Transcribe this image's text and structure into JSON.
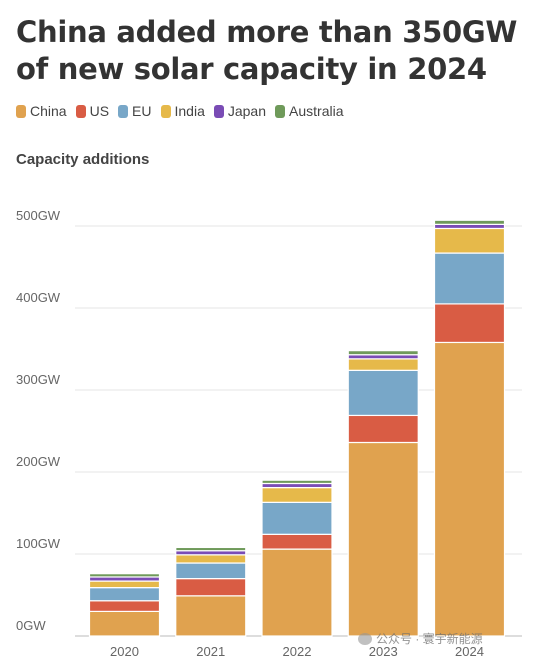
{
  "chart_data": {
    "type": "bar",
    "stacked": true,
    "title": "China added more than 350GW of new solar capacity in 2024",
    "subtitle": "Capacity additions",
    "categories": [
      "2020",
      "2021",
      "2022",
      "2023",
      "2024"
    ],
    "y_ticks": [
      "0GW",
      "100GW",
      "200GW",
      "300GW",
      "400GW",
      "500GW"
    ],
    "y_tick_values": [
      0,
      100,
      200,
      300,
      400,
      500
    ],
    "ylim": [
      0,
      540
    ],
    "unit": "GW",
    "grid": true,
    "legend_position": "top",
    "series": [
      {
        "name": "China",
        "color": "#e0a24f",
        "values": [
          30,
          49,
          106,
          236,
          358
        ]
      },
      {
        "name": "US",
        "color": "#d95c44",
        "values": [
          13,
          21,
          18,
          33,
          47
        ]
      },
      {
        "name": "EU",
        "color": "#78a7c8",
        "values": [
          16,
          19,
          39,
          55,
          62
        ]
      },
      {
        "name": "India",
        "color": "#e6b94a",
        "values": [
          8,
          10,
          18,
          14,
          30
        ]
      },
      {
        "name": "Japan",
        "color": "#7a4cb5",
        "values": [
          5,
          5,
          5,
          5,
          5
        ]
      },
      {
        "name": "Australia",
        "color": "#6f9a5a",
        "values": [
          4,
          4,
          4,
          5,
          5
        ]
      }
    ]
  },
  "watermark": {
    "text": "公众号 · 寰宇新能源"
  }
}
